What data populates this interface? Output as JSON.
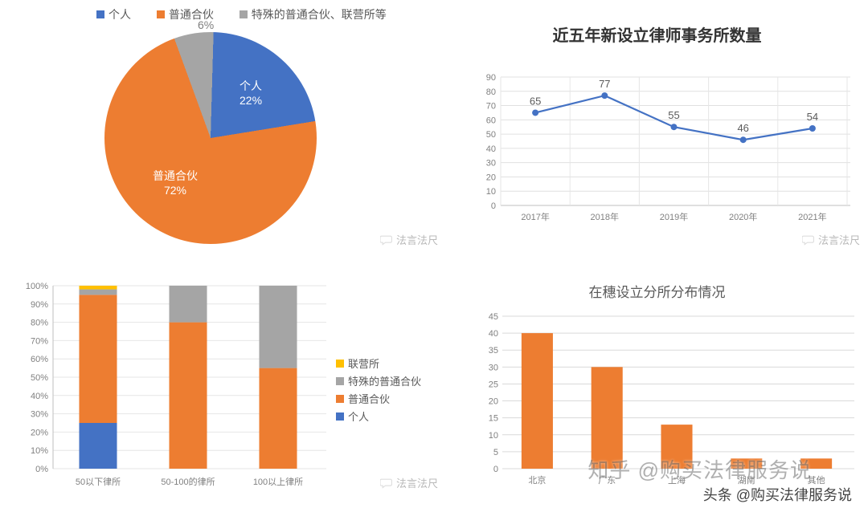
{
  "colors": {
    "blue": "#4472c4",
    "orange": "#ed7d31",
    "grey": "#a5a5a5",
    "yellow": "#ffc000",
    "axis_grey": "#bfbfbf",
    "grid": "#e6e6e6",
    "text_muted": "#7f7f7f"
  },
  "pie": {
    "type": "pie",
    "legend": [
      "个人",
      "普通合伙",
      "特殊的普通合伙、联营所等"
    ],
    "legend_colors": [
      "#4472c4",
      "#ed7d31",
      "#a5a5a5"
    ],
    "slices": [
      {
        "label": "个人",
        "sub": "22%",
        "value": 22,
        "color": "#4472c4"
      },
      {
        "label": "普通合伙",
        "sub": "72%",
        "value": 72,
        "color": "#ed7d31"
      },
      {
        "label": "",
        "sub": "6%",
        "value": 6,
        "color": "#a5a5a5"
      }
    ],
    "watermark": "法言法尺"
  },
  "line": {
    "type": "line",
    "title": "近五年新设立律师事务所数量",
    "x_categories": [
      "2017年",
      "2018年",
      "2019年",
      "2020年",
      "2021年"
    ],
    "values": [
      65,
      77,
      55,
      46,
      54
    ],
    "ylim": [
      0,
      90
    ],
    "ytick_step": 10,
    "line_color": "#4472c4",
    "marker_color": "#4472c4",
    "grid_color": "#e6e6e6",
    "axis_color": "#bfbfbf",
    "label_fontsize": 13,
    "watermark": "法言法尺"
  },
  "stacked": {
    "type": "stacked_bar_100pct",
    "y_format": "percent",
    "ylim": [
      0,
      100
    ],
    "ytick_step": 10,
    "x_categories": [
      "50以下律所",
      "50-100的律所",
      "100以上律所"
    ],
    "series": [
      {
        "name": "个人",
        "color": "#4472c4",
        "values": [
          25,
          0,
          0
        ]
      },
      {
        "name": "普通合伙",
        "color": "#ed7d31",
        "values": [
          70,
          80,
          55
        ]
      },
      {
        "name": "特殊的普通合伙",
        "color": "#a5a5a5",
        "values": [
          3,
          20,
          45
        ]
      },
      {
        "name": "联营所",
        "color": "#ffc000",
        "values": [
          2,
          0,
          0
        ]
      }
    ],
    "legend_order": [
      "联营所",
      "特殊的普通合伙",
      "普通合伙",
      "个人"
    ],
    "bar_width": 0.42,
    "watermark": "法言法尺"
  },
  "bar": {
    "type": "bar",
    "title": "在穗设立分所分布情况",
    "x_categories": [
      "北京",
      "广东",
      "上海",
      "湖南",
      "其他"
    ],
    "values": [
      40,
      30,
      13,
      3,
      3
    ],
    "ylim": [
      0,
      45
    ],
    "ytick_step": 5,
    "bar_color": "#ed7d31",
    "grid_color": "#d9d9d9",
    "bar_width": 0.45
  },
  "overlays": {
    "zhihu": "知乎 @购买法律服务说",
    "toutiao": "头条 @购买法律服务说"
  }
}
